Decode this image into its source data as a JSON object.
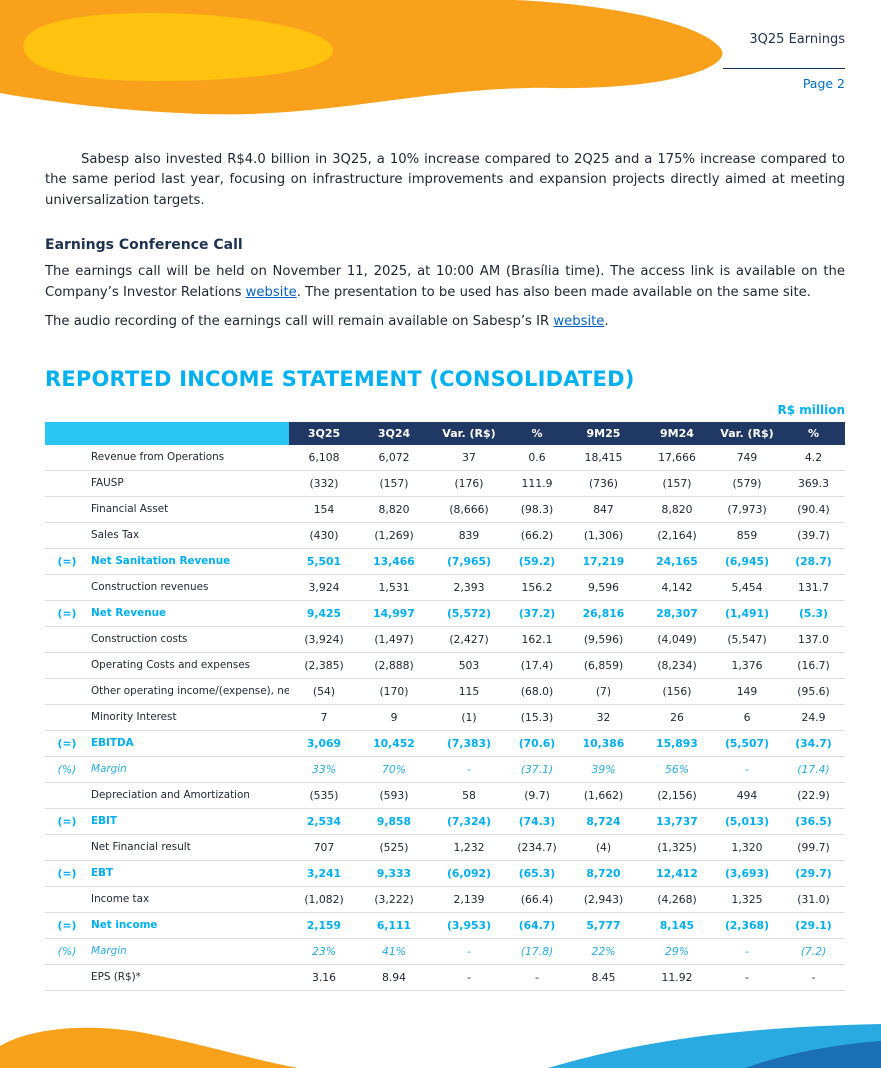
{
  "page": {
    "header_title": "3Q25 Earnings",
    "page_number": "Page 2"
  },
  "intro": {
    "paragraph": "Sabesp also invested R$4.0 billion in 3Q25, a 10% increase compared to 2Q25 and a 175% increase compared to the same period last year, focusing on infrastructure improvements and expansion projects directly aimed at meeting universalization targets."
  },
  "conference_call": {
    "heading": "Earnings Conference Call",
    "p1_before": "The earnings call will be held on November 11, 2025, at 10:00 AM (Brasília time). The access link is available on the Company’s Investor Relations ",
    "p1_link": "website",
    "p1_after": ". The presentation to be used has also been made available on the same site.",
    "p2_before": "The audio recording of the earnings call will remain available on Sabesp’s IR ",
    "p2_link": "website",
    "p2_after": "."
  },
  "statement": {
    "title": "REPORTED INCOME STATEMENT (CONSOLIDATED)",
    "unit_label": "R$ million"
  },
  "table": {
    "columns": [
      "3Q25",
      "3Q24",
      "Var. (R$)",
      "%",
      "9M25",
      "9M24",
      "Var. (R$)",
      "%"
    ],
    "rows": [
      {
        "prefix": "",
        "label": "Revenue from Operations",
        "style": "normal",
        "values": [
          "6,108",
          "6,072",
          "37",
          "0.6",
          "18,415",
          "17,666",
          "749",
          "4.2"
        ]
      },
      {
        "prefix": "",
        "label": "FAUSP",
        "style": "normal",
        "values": [
          "(332)",
          "(157)",
          "(176)",
          "111.9",
          "(736)",
          "(157)",
          "(579)",
          "369.3"
        ]
      },
      {
        "prefix": "",
        "label": "Financial Asset",
        "style": "normal",
        "values": [
          "154",
          "8,820",
          "(8,666)",
          "(98.3)",
          "847",
          "8,820",
          "(7,973)",
          "(90.4)"
        ]
      },
      {
        "prefix": "",
        "label": "Sales Tax",
        "style": "normal",
        "values": [
          "(430)",
          "(1,269)",
          "839",
          "(66.2)",
          "(1,306)",
          "(2,164)",
          "859",
          "(39.7)"
        ]
      },
      {
        "prefix": "(=)",
        "label": "Net Sanitation Revenue",
        "style": "total",
        "values": [
          "5,501",
          "13,466",
          "(7,965)",
          "(59.2)",
          "17,219",
          "24,165",
          "(6,945)",
          "(28.7)"
        ]
      },
      {
        "prefix": "",
        "label": "Construction revenues",
        "style": "normal",
        "values": [
          "3,924",
          "1,531",
          "2,393",
          "156.2",
          "9,596",
          "4,142",
          "5,454",
          "131.7"
        ]
      },
      {
        "prefix": "(=)",
        "label": "Net Revenue",
        "style": "total",
        "values": [
          "9,425",
          "14,997",
          "(5,572)",
          "(37.2)",
          "26,816",
          "28,307",
          "(1,491)",
          "(5.3)"
        ]
      },
      {
        "prefix": "",
        "label": "Construction costs",
        "style": "normal",
        "values": [
          "(3,924)",
          "(1,497)",
          "(2,427)",
          "162.1",
          "(9,596)",
          "(4,049)",
          "(5,547)",
          "137.0"
        ]
      },
      {
        "prefix": "",
        "label": "Operating Costs and expenses",
        "style": "normal",
        "values": [
          "(2,385)",
          "(2,888)",
          "503",
          "(17.4)",
          "(6,859)",
          "(8,234)",
          "1,376",
          "(16.7)"
        ]
      },
      {
        "prefix": "",
        "label": "Other operating income/(expense), net",
        "style": "normal",
        "values": [
          "(54)",
          "(170)",
          "115",
          "(68.0)",
          "(7)",
          "(156)",
          "149",
          "(95.6)"
        ]
      },
      {
        "prefix": "",
        "label": "Minority Interest",
        "style": "normal",
        "values": [
          "7",
          "9",
          "(1)",
          "(15.3)",
          "32",
          "26",
          "6",
          "24.9"
        ]
      },
      {
        "prefix": "(=)",
        "label": "EBITDA",
        "style": "total",
        "values": [
          "3,069",
          "10,452",
          "(7,383)",
          "(70.6)",
          "10,386",
          "15,893",
          "(5,507)",
          "(34.7)"
        ]
      },
      {
        "prefix": "(%)",
        "label": "Margin",
        "style": "margin",
        "values": [
          "33%",
          "70%",
          "-",
          "(37.1)",
          "39%",
          "56%",
          "-",
          "(17.4)"
        ]
      },
      {
        "prefix": "",
        "label": "Depreciation and Amortization",
        "style": "normal",
        "values": [
          "(535)",
          "(593)",
          "58",
          "(9.7)",
          "(1,662)",
          "(2,156)",
          "494",
          "(22.9)"
        ]
      },
      {
        "prefix": "(=)",
        "label": "EBIT",
        "style": "total",
        "values": [
          "2,534",
          "9,858",
          "(7,324)",
          "(74.3)",
          "8,724",
          "13,737",
          "(5,013)",
          "(36.5)"
        ]
      },
      {
        "prefix": "",
        "label": "Net Financial result",
        "style": "normal",
        "values": [
          "707",
          "(525)",
          "1,232",
          "(234.7)",
          "(4)",
          "(1,325)",
          "1,320",
          "(99.7)"
        ]
      },
      {
        "prefix": "(=)",
        "label": "EBT",
        "style": "total",
        "values": [
          "3,241",
          "9,333",
          "(6,092)",
          "(65.3)",
          "8,720",
          "12,412",
          "(3,693)",
          "(29.7)"
        ]
      },
      {
        "prefix": "",
        "label": "Income tax",
        "style": "normal",
        "values": [
          "(1,082)",
          "(3,222)",
          "2,139",
          "(66.4)",
          "(2,943)",
          "(4,268)",
          "1,325",
          "(31.0)"
        ]
      },
      {
        "prefix": "(=)",
        "label": "Net income",
        "style": "total",
        "values": [
          "2,159",
          "6,111",
          "(3,953)",
          "(64.7)",
          "5,777",
          "8,145",
          "(2,368)",
          "(29.1)"
        ]
      },
      {
        "prefix": "(%)",
        "label": "Margin",
        "style": "margin",
        "values": [
          "23%",
          "41%",
          "-",
          "(17.8)",
          "22%",
          "29%",
          "-",
          "(7.2)"
        ]
      },
      {
        "prefix": "",
        "label": "EPS (R$)*",
        "style": "normal",
        "values": [
          "3.16",
          "8.94",
          "-",
          "-",
          "8.45",
          "11.92",
          "-",
          "-"
        ]
      }
    ]
  },
  "colors": {
    "accent_cyan": "#00B0F0",
    "total_row_cyan": "#00AEEF",
    "header_navy": "#1F3864",
    "header_corner_cyan": "#29C6F4",
    "link_blue": "#0563C1",
    "page_number_blue": "#0070C0",
    "deco_orange": "#F9A11B",
    "deco_yellow": "#FFC20E",
    "deco_bottom_cyan": "#29ABE2",
    "deco_bottom_blue": "#1B6FB5"
  }
}
